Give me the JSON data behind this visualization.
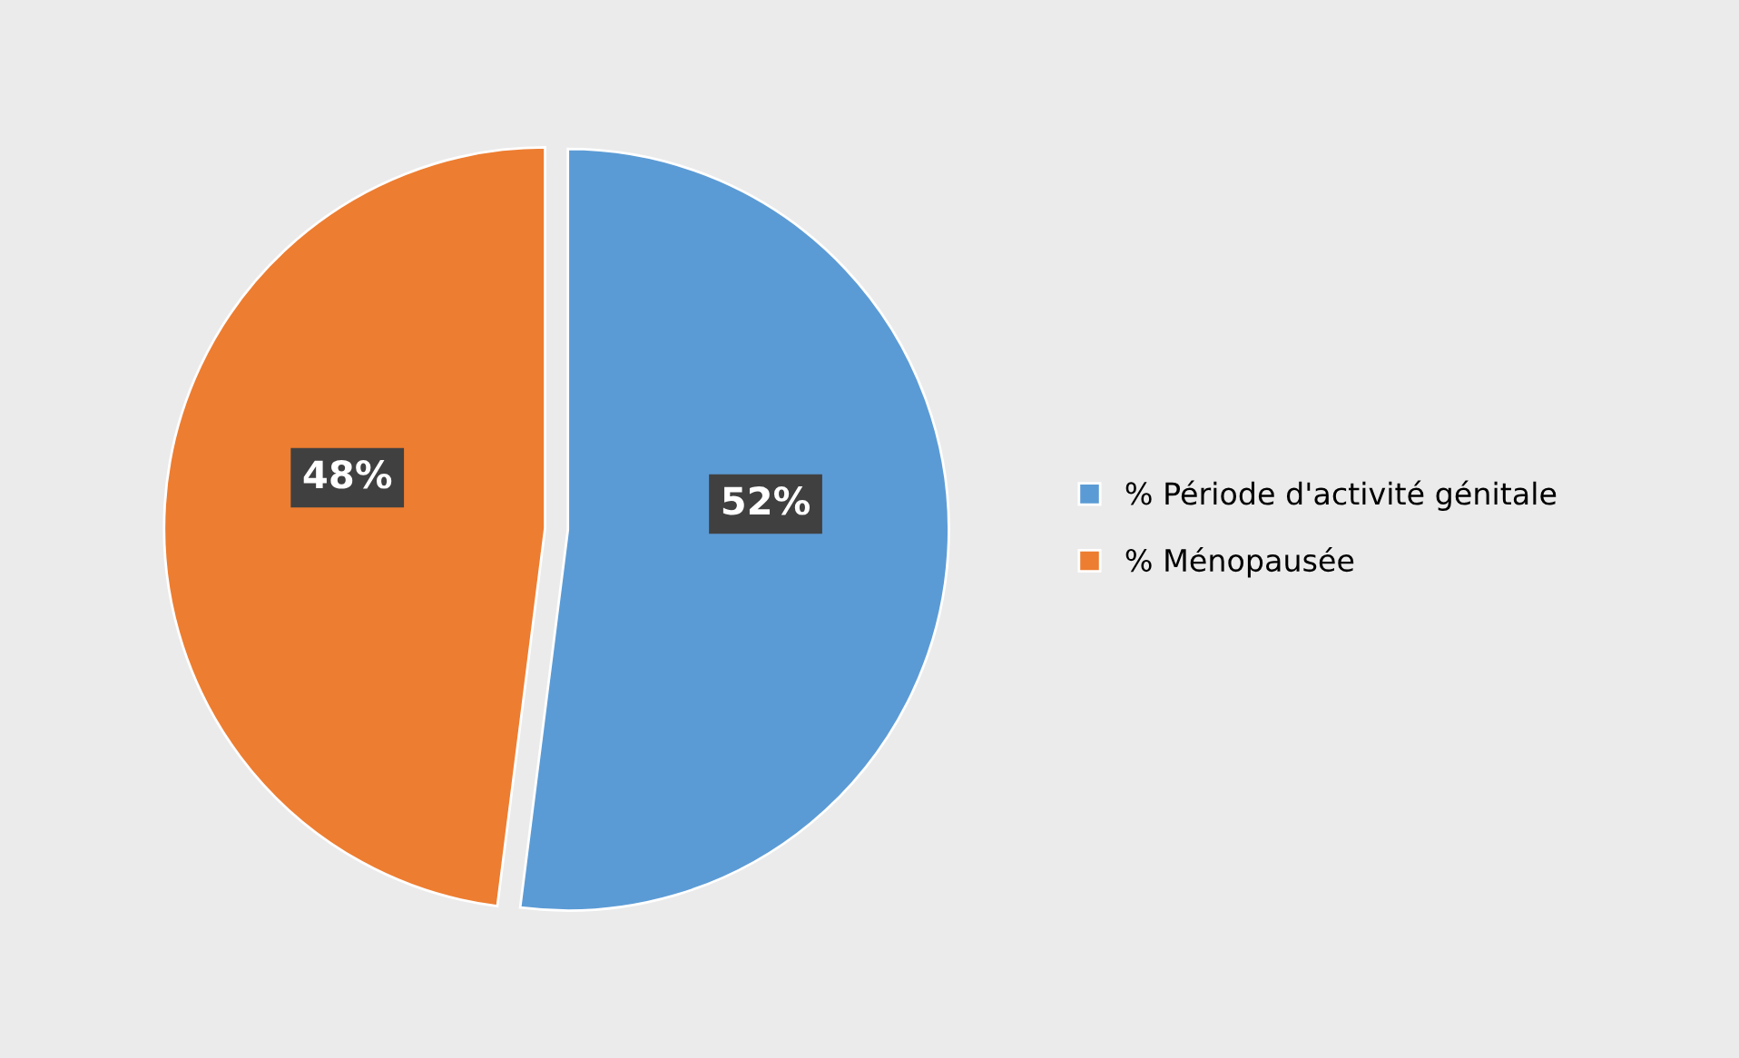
{
  "chart_data": {
    "type": "pie",
    "categories": [
      "% Période d'activité génitale",
      "% Ménopausée"
    ],
    "values": [
      52,
      48
    ],
    "colors": [
      "#5b9bd5",
      "#ed7d31"
    ],
    "value_labels": [
      "52%",
      "48%"
    ],
    "legend": "right"
  }
}
